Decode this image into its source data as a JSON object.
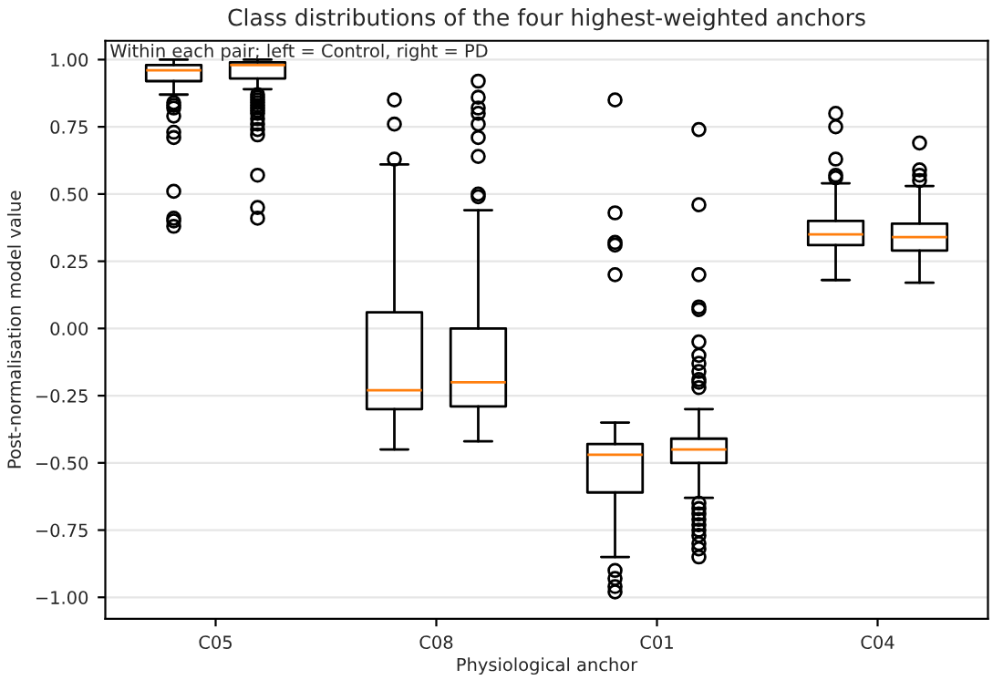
{
  "chart_data": {
    "type": "box",
    "title": "Class distributions of the four highest-weighted anchors",
    "xlabel": "Physiological anchor",
    "ylabel": "Post-normalisation model value",
    "annotations": [
      "Within each pair; left = Control, right = PD"
    ],
    "categories": [
      "C05",
      "C08",
      "C01",
      "C04"
    ],
    "series": [
      {
        "boxes": [
          {
            "low": 0.87,
            "q1": 0.92,
            "median": 0.96,
            "q3": 0.98,
            "high": 1.0,
            "outliers": [
              0.84,
              0.83,
              0.82,
              0.79,
              0.73,
              0.71,
              0.51,
              0.41,
              0.4,
              0.38
            ]
          },
          {
            "low": -0.45,
            "q1": -0.3,
            "median": -0.23,
            "q3": 0.06,
            "high": 0.61,
            "outliers": [
              0.63,
              0.76,
              0.85
            ]
          },
          {
            "low": -0.85,
            "q1": -0.61,
            "median": -0.47,
            "q3": -0.43,
            "high": -0.35,
            "outliers": [
              0.85,
              0.43,
              0.32,
              0.31,
              0.2,
              -0.9,
              -0.93,
              -0.96,
              -0.98
            ]
          },
          {
            "low": 0.18,
            "q1": 0.31,
            "median": 0.35,
            "q3": 0.4,
            "high": 0.54,
            "outliers": [
              0.8,
              0.75,
              0.63,
              0.57,
              0.56
            ]
          }
        ]
      },
      {
        "boxes": [
          {
            "low": 0.89,
            "q1": 0.93,
            "median": 0.98,
            "q3": 0.99,
            "high": 1.0,
            "outliers": [
              0.87,
              0.86,
              0.85,
              0.84,
              0.83,
              0.82,
              0.81,
              0.8,
              0.78,
              0.76,
              0.74,
              0.72,
              0.57,
              0.45,
              0.41
            ]
          },
          {
            "low": -0.42,
            "q1": -0.29,
            "median": -0.2,
            "q3": 0.0,
            "high": 0.44,
            "outliers": [
              0.49,
              0.5,
              0.64,
              0.71,
              0.76,
              0.8,
              0.82,
              0.86,
              0.92
            ]
          },
          {
            "low": -0.63,
            "q1": -0.5,
            "median": -0.45,
            "q3": -0.41,
            "high": -0.3,
            "outliers": [
              0.74,
              0.46,
              0.2,
              0.08,
              0.07,
              -0.05,
              -0.1,
              -0.13,
              -0.16,
              -0.19,
              -0.2,
              -0.22,
              -0.65,
              -0.67,
              -0.69,
              -0.71,
              -0.73,
              -0.75,
              -0.77,
              -0.8,
              -0.82,
              -0.85
            ]
          },
          {
            "low": 0.17,
            "q1": 0.29,
            "median": 0.34,
            "q3": 0.39,
            "high": 0.53,
            "outliers": [
              0.69,
              0.59,
              0.57,
              0.55
            ]
          }
        ]
      }
    ],
    "ylim": [
      -1.08,
      1.07
    ],
    "yticks": [
      {
        "value": -1.0,
        "label": "−1.00"
      },
      {
        "value": -0.75,
        "label": "−0.75"
      },
      {
        "value": -0.5,
        "label": "−0.50"
      },
      {
        "value": -0.25,
        "label": "−0.25"
      },
      {
        "value": 0.0,
        "label": "0.00"
      },
      {
        "value": 0.25,
        "label": "0.25"
      },
      {
        "value": 0.5,
        "label": "0.50"
      },
      {
        "value": 0.75,
        "label": "0.75"
      },
      {
        "value": 1.0,
        "label": "1.00"
      }
    ],
    "grid": "y"
  }
}
